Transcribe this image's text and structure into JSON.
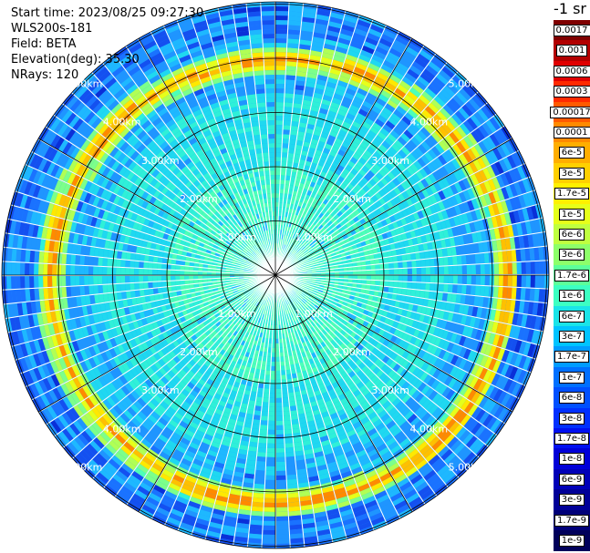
{
  "info": {
    "start_time": "Start time: 2023/08/25 09:27:30",
    "device": "WLS200s-181",
    "field": "Field: BETA",
    "elevation": "Elevation(deg): 35.30",
    "nrays": "NRays: 120"
  },
  "colorbar": {
    "title": "-1 sr",
    "labels": [
      "0.0017",
      "0.001",
      "0.0006",
      "0.0003",
      "0.00017",
      "0.0001",
      "6e-5",
      "3e-5",
      "1.7e-5",
      "1e-5",
      "6e-6",
      "3e-6",
      "1.7e-6",
      "1e-6",
      "6e-7",
      "3e-7",
      "1.7e-7",
      "1e-7",
      "6e-8",
      "3e-8",
      "1.7e-8",
      "1e-8",
      "6e-9",
      "3e-9",
      "1.7e-9",
      "1e-9"
    ],
    "colors": [
      "#7f0000",
      "#b20000",
      "#e00000",
      "#ff2a00",
      "#ff5a00",
      "#ff8a00",
      "#ffae00",
      "#ffd000",
      "#fff000",
      "#e6ff1a",
      "#bfff40",
      "#8dff6a",
      "#5cff9a",
      "#3cffc2",
      "#1ae4e8",
      "#00c4ff",
      "#009cff",
      "#0070ff",
      "#0050ff",
      "#0030ff",
      "#0010f0",
      "#0000d8",
      "#0000b8",
      "#000098",
      "#000078",
      "#00005a"
    ]
  },
  "range_labels": [
    "1.00km",
    "2.00km",
    "3.00km",
    "4.00km",
    "5.00km"
  ],
  "chart_data": {
    "type": "heatmap",
    "title": "",
    "field": "BETA",
    "units_label": "-1 sr",
    "nrays": 120,
    "elevation_deg": 35.3,
    "range_rings_km": [
      1.0,
      2.0,
      3.0,
      4.0,
      5.0
    ],
    "scale": "log",
    "vmin": 1e-09,
    "vmax": 0.0017,
    "features": "high-backscatter ring near 4.2 km"
  }
}
